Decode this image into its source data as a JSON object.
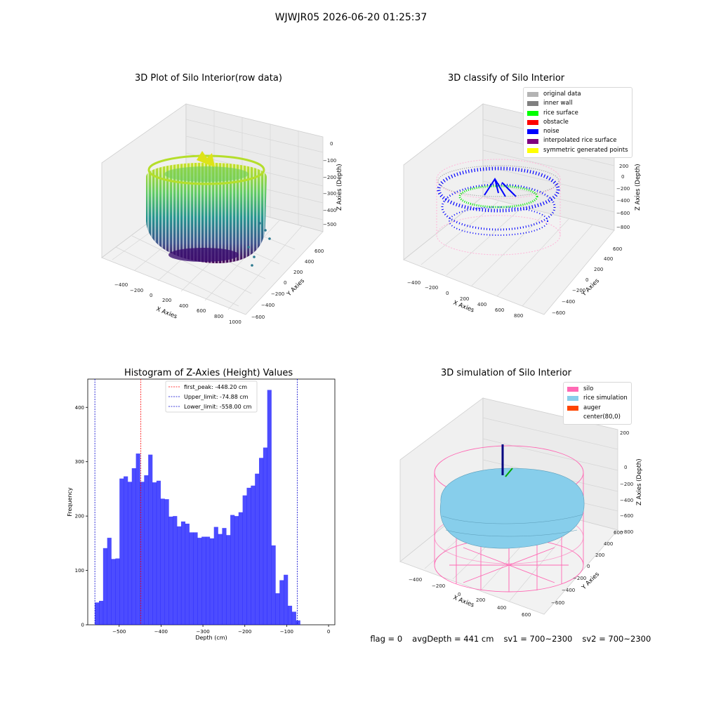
{
  "suptitle": "WJWJR05 2026-06-20 01:25:37",
  "panels": {
    "raw": {
      "title": "3D Plot of Silo Interior(row data)",
      "xlabel": "X Axies",
      "ylabel": "Y Axies",
      "zlabel": "Z Axies (Depth)",
      "x_ticks": [
        "−400",
        "−200",
        "0",
        "200",
        "400",
        "600",
        "800",
        "1000"
      ],
      "y_ticks": [
        "−600",
        "−400",
        "−200",
        "0",
        "200",
        "400",
        "600"
      ],
      "z_ticks": [
        "0",
        "−100",
        "−200",
        "−300",
        "−400",
        "−500"
      ]
    },
    "classify": {
      "title": "3D classify of Silo Interior",
      "xlabel": "X Axies",
      "ylabel": "Y Axies",
      "zlabel": "Z Axies (Depth)",
      "x_ticks": [
        "−400",
        "−200",
        "0",
        "200",
        "400",
        "600",
        "800"
      ],
      "y_ticks": [
        "−600",
        "−400",
        "−200",
        "0",
        "200",
        "400",
        "600"
      ],
      "z_ticks": [
        "400",
        "200",
        "0",
        "−200",
        "−400",
        "−600",
        "−800"
      ],
      "legend": [
        {
          "label": "original data",
          "color": "#b3b3b3"
        },
        {
          "label": "inner wall",
          "color": "#808080"
        },
        {
          "label": "rice surface",
          "color": "#00ff00"
        },
        {
          "label": "obstacle",
          "color": "#ff0000"
        },
        {
          "label": "noise",
          "color": "#0000ff"
        },
        {
          "label": "interpolated rice surface",
          "color": "#800080"
        },
        {
          "label": "symmetric generated points",
          "color": "#ffff00"
        }
      ]
    },
    "simulation": {
      "title": "3D simulation of Silo Interior",
      "xlabel": "X Axies",
      "ylabel": "Y Axies",
      "zlabel": "Z Axies (Depth)",
      "x_ticks": [
        "−400",
        "−200",
        "0",
        "200",
        "400",
        "600"
      ],
      "y_ticks": [
        "−600",
        "−400",
        "−200",
        "0",
        "200",
        "400",
        "600"
      ],
      "z_ticks": [
        "200",
        "0",
        "−200",
        "−400",
        "−600",
        "−800"
      ],
      "legend": [
        {
          "label": "silo",
          "color": "#ff69b4"
        },
        {
          "label": "rice simulation",
          "color": "#87ceeb"
        },
        {
          "label": "auger",
          "color": "#ff4500"
        },
        {
          "label": "center(80,0)",
          "color": "#ffffff"
        }
      ]
    }
  },
  "status": {
    "flag": "flag = 0",
    "avg_depth": "avgDepth = 441 cm",
    "sv1": "sv1 = 700~2300",
    "sv2": "sv2 = 700~2300"
  },
  "chart_data": {
    "type": "bar",
    "title": "Histogram of Z-Axies (Height) Values",
    "xlabel": "Depth (cm)",
    "ylabel": "Frequency",
    "xlim": [
      -575,
      15
    ],
    "ylim": [
      0,
      452
    ],
    "x_ticks": [
      -500,
      -400,
      -300,
      -200,
      -100,
      0
    ],
    "y_ticks": [
      0,
      100,
      200,
      300,
      400
    ],
    "bin_start": -558,
    "bin_width": 9.8,
    "color": "#0000ff",
    "values": [
      41,
      44,
      141,
      160,
      121,
      122,
      269,
      273,
      263,
      288,
      315,
      263,
      275,
      313,
      262,
      265,
      232,
      231,
      199,
      200,
      181,
      190,
      186,
      170,
      170,
      160,
      162,
      162,
      159,
      180,
      167,
      178,
      165,
      202,
      200,
      207,
      238,
      252,
      256,
      278,
      307,
      326,
      432,
      146,
      58,
      82,
      92,
      35,
      24,
      8
    ],
    "lines": [
      {
        "label": "first_peak: -448.20 cm",
        "value": -448.2,
        "color": "#ff0000"
      },
      {
        "label": "Upper_limit: -74.88 cm",
        "value": -74.88,
        "color": "#0000cd"
      },
      {
        "label": "Lower_limit: -558.00 cm",
        "value": -558.0,
        "color": "#0000cd"
      }
    ]
  }
}
